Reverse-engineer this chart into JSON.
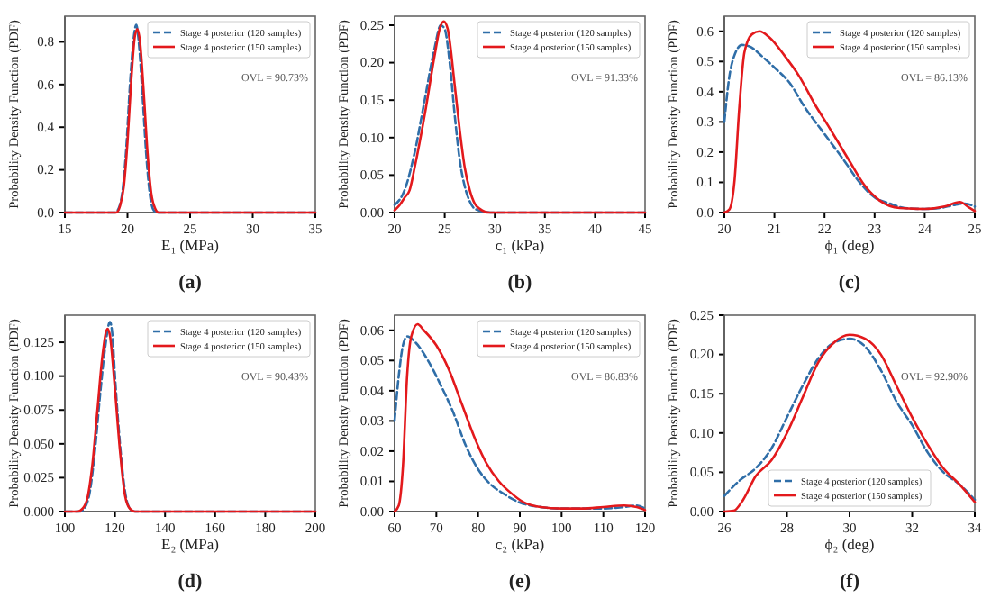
{
  "chart_data": [
    {
      "type": "line",
      "xlabel": "E₁ (MPa)",
      "ylabel": "Probability Density Function (PDF)",
      "xlim": [
        15,
        35
      ],
      "xticks": [
        15,
        20,
        25,
        30,
        35
      ],
      "ylim": [
        0,
        0.92
      ],
      "yticks": [
        {
          "value": 0,
          "label": "0.0"
        },
        {
          "value": 0.2,
          "label": "0.2"
        },
        {
          "value": 0.4,
          "label": "0.4"
        },
        {
          "value": 0.6,
          "label": "0.6"
        },
        {
          "value": 0.8,
          "label": "0.8"
        }
      ],
      "legend": "top right",
      "grid": false,
      "annotations": [
        "OVL = 90.73%",
        "(a)"
      ],
      "series": [
        {
          "name": "Stage 4 posterior (120 samples)",
          "color": "#2f6ea8",
          "line_style": "dashed",
          "x": [
            15,
            19,
            19.3,
            19.6,
            19.9,
            20.2,
            20.5,
            20.7,
            20.9,
            21.2,
            21.5,
            21.8,
            22.1,
            22.4,
            35
          ],
          "values": [
            0,
            0,
            0.02,
            0.1,
            0.3,
            0.6,
            0.82,
            0.88,
            0.8,
            0.55,
            0.27,
            0.08,
            0.01,
            0,
            0
          ]
        },
        {
          "name": "Stage 4 posterior (150 samples)",
          "color": "#e3191c",
          "line_style": "solid",
          "x": [
            15,
            19.1,
            19.4,
            19.7,
            20,
            20.3,
            20.6,
            20.8,
            21,
            21.3,
            21.6,
            21.9,
            22.2,
            22.5,
            35
          ],
          "values": [
            0,
            0,
            0.03,
            0.12,
            0.33,
            0.62,
            0.83,
            0.86,
            0.8,
            0.56,
            0.28,
            0.09,
            0.02,
            0,
            0
          ]
        }
      ]
    },
    {
      "type": "line",
      "xlabel": "c₁ (kPa)",
      "ylabel": "Probability Density Function (PDF)",
      "xlim": [
        20,
        45
      ],
      "xticks": [
        20,
        25,
        30,
        35,
        40,
        45
      ],
      "ylim": [
        0,
        0.262
      ],
      "yticks": [
        {
          "value": 0,
          "label": "0.00"
        },
        {
          "value": 0.05,
          "label": "0.05"
        },
        {
          "value": 0.1,
          "label": "0.10"
        },
        {
          "value": 0.15,
          "label": "0.15"
        },
        {
          "value": 0.2,
          "label": "0.20"
        },
        {
          "value": 0.25,
          "label": "0.25"
        }
      ],
      "legend": "top right",
      "grid": false,
      "annotations": [
        "OVL = 91.33%",
        "(b)"
      ],
      "series": [
        {
          "name": "Stage 4 posterior (120 samples)",
          "color": "#2f6ea8",
          "line_style": "dashed",
          "x": [
            20,
            21,
            22,
            23,
            24,
            24.6,
            25,
            25.5,
            26,
            26.5,
            27,
            27.5,
            28,
            29,
            30,
            45
          ],
          "values": [
            0.01,
            0.03,
            0.08,
            0.15,
            0.22,
            0.25,
            0.245,
            0.2,
            0.13,
            0.07,
            0.035,
            0.015,
            0.005,
            0.001,
            0,
            0
          ]
        },
        {
          "name": "Stage 4 posterior (150 samples)",
          "color": "#e3191c",
          "line_style": "solid",
          "x": [
            20,
            20.5,
            21,
            21.5,
            22,
            23,
            24,
            24.5,
            24.9,
            25.3,
            26,
            26.5,
            27,
            27.5,
            28,
            28.5,
            29.5,
            45
          ],
          "values": [
            0.003,
            0.01,
            0.02,
            0.03,
            0.06,
            0.13,
            0.21,
            0.245,
            0.255,
            0.245,
            0.17,
            0.11,
            0.06,
            0.03,
            0.012,
            0.005,
            0,
            0
          ]
        }
      ]
    },
    {
      "type": "line",
      "xlabel": "ϕ₁ (deg)",
      "ylabel": "Probability Density Function (PDF)",
      "xlim": [
        20,
        25
      ],
      "xticks": [
        20,
        21,
        22,
        23,
        24,
        25
      ],
      "ylim": [
        0,
        0.65
      ],
      "yticks": [
        {
          "value": 0,
          "label": "0.0"
        },
        {
          "value": 0.1,
          "label": "0.1"
        },
        {
          "value": 0.2,
          "label": "0.2"
        },
        {
          "value": 0.3,
          "label": "0.3"
        },
        {
          "value": 0.4,
          "label": "0.4"
        },
        {
          "value": 0.5,
          "label": "0.5"
        },
        {
          "value": 0.6,
          "label": "0.6"
        }
      ],
      "legend": "top right",
      "grid": false,
      "annotations": [
        "OVL = 86.13%",
        "(c)"
      ],
      "series": [
        {
          "name": "Stage 4 posterior (120 samples)",
          "color": "#2f6ea8",
          "line_style": "dashed",
          "x": [
            20,
            20.1,
            20.2,
            20.35,
            20.5,
            20.8,
            21,
            21.3,
            21.6,
            22,
            22.4,
            22.7,
            23,
            23.3,
            23.6,
            24,
            24.3,
            24.6,
            24.8,
            25
          ],
          "values": [
            0.3,
            0.45,
            0.52,
            0.555,
            0.55,
            0.51,
            0.48,
            0.43,
            0.35,
            0.26,
            0.17,
            0.1,
            0.05,
            0.03,
            0.015,
            0.012,
            0.015,
            0.025,
            0.03,
            0.02
          ]
        },
        {
          "name": "Stage 4 posterior (150 samples)",
          "color": "#e3191c",
          "line_style": "solid",
          "x": [
            20,
            20.1,
            20.2,
            20.3,
            20.4,
            20.55,
            20.7,
            20.9,
            21.2,
            21.5,
            21.8,
            22.1,
            22.5,
            22.8,
            23.1,
            23.5,
            24,
            24.4,
            24.7,
            24.9,
            25
          ],
          "values": [
            0,
            0.01,
            0.1,
            0.35,
            0.53,
            0.59,
            0.6,
            0.58,
            0.52,
            0.45,
            0.36,
            0.28,
            0.17,
            0.09,
            0.04,
            0.015,
            0.012,
            0.02,
            0.035,
            0.015,
            0.005
          ]
        }
      ]
    },
    {
      "type": "line",
      "xlabel": "E₂ (MPa)",
      "ylabel": "Probability Density Function (PDF)",
      "xlim": [
        100,
        200
      ],
      "xticks": [
        100,
        120,
        140,
        160,
        180,
        200
      ],
      "ylim": [
        0,
        0.145
      ],
      "yticks": [
        {
          "value": 0,
          "label": "0.000"
        },
        {
          "value": 0.025,
          "label": "0.025"
        },
        {
          "value": 0.05,
          "label": "0.050"
        },
        {
          "value": 0.075,
          "label": "0.075"
        },
        {
          "value": 0.1,
          "label": "0.100"
        },
        {
          "value": 0.125,
          "label": "0.125"
        }
      ],
      "legend": "top right",
      "grid": false,
      "annotations": [
        "OVL = 90.43%",
        "(d)"
      ],
      "series": [
        {
          "name": "Stage 4 posterior (120 samples)",
          "color": "#2f6ea8",
          "line_style": "dashed",
          "x": [
            100,
            106,
            108,
            110,
            112,
            114,
            116,
            118,
            119,
            120,
            122,
            124,
            126,
            128,
            200
          ],
          "values": [
            0,
            0,
            0.003,
            0.015,
            0.045,
            0.085,
            0.12,
            0.14,
            0.13,
            0.1,
            0.05,
            0.015,
            0.002,
            0,
            0
          ]
        },
        {
          "name": "Stage 4 posterior (150 samples)",
          "color": "#e3191c",
          "line_style": "solid",
          "x": [
            100,
            105,
            107,
            109,
            111,
            113,
            115,
            117,
            118,
            120,
            122,
            124,
            126,
            128,
            200
          ],
          "values": [
            0,
            0,
            0.002,
            0.01,
            0.035,
            0.075,
            0.115,
            0.135,
            0.13,
            0.09,
            0.045,
            0.012,
            0.002,
            0,
            0
          ]
        }
      ]
    },
    {
      "type": "line",
      "xlabel": "c₂ (kPa)",
      "ylabel": "Probability Density Function (PDF)",
      "xlim": [
        60,
        120
      ],
      "xticks": [
        60,
        70,
        80,
        90,
        100,
        110,
        120
      ],
      "ylim": [
        0,
        0.065
      ],
      "yticks": [
        {
          "value": 0,
          "label": "0.00"
        },
        {
          "value": 0.01,
          "label": "0.01"
        },
        {
          "value": 0.02,
          "label": "0.02"
        },
        {
          "value": 0.03,
          "label": "0.03"
        },
        {
          "value": 0.04,
          "label": "0.04"
        },
        {
          "value": 0.05,
          "label": "0.05"
        },
        {
          "value": 0.06,
          "label": "0.06"
        }
      ],
      "legend": "top right",
      "grid": false,
      "annotations": [
        "OVL = 86.83%",
        "(e)"
      ],
      "series": [
        {
          "name": "Stage 4 posterior (120 samples)",
          "color": "#2f6ea8",
          "line_style": "dashed",
          "x": [
            60,
            61,
            62,
            63,
            65,
            68,
            71,
            74,
            77,
            80,
            83,
            86,
            90,
            95,
            100,
            105,
            110,
            115,
            118,
            120
          ],
          "values": [
            0.03,
            0.045,
            0.055,
            0.058,
            0.056,
            0.05,
            0.042,
            0.033,
            0.022,
            0.014,
            0.009,
            0.006,
            0.003,
            0.0015,
            0.001,
            0.001,
            0.001,
            0.0015,
            0.002,
            0.001
          ]
        },
        {
          "name": "Stage 4 posterior (150 samples)",
          "color": "#e3191c",
          "line_style": "solid",
          "x": [
            60,
            61,
            62,
            63,
            64,
            65.5,
            67,
            70,
            73,
            76,
            79,
            82,
            85,
            88,
            91,
            95,
            100,
            105,
            110,
            115,
            118,
            120
          ],
          "values": [
            0,
            0.002,
            0.015,
            0.045,
            0.058,
            0.062,
            0.06,
            0.055,
            0.047,
            0.036,
            0.025,
            0.016,
            0.01,
            0.006,
            0.003,
            0.0015,
            0.001,
            0.001,
            0.0015,
            0.002,
            0.0015,
            0.0005
          ]
        }
      ]
    },
    {
      "type": "line",
      "xlabel": "ϕ₂ (deg)",
      "ylabel": "Probability Density Function (PDF)",
      "xlim": [
        26,
        34
      ],
      "xticks": [
        26,
        28,
        30,
        32,
        34
      ],
      "ylim": [
        0,
        0.25
      ],
      "yticks": [
        {
          "value": 0,
          "label": "0.00"
        },
        {
          "value": 0.05,
          "label": "0.05"
        },
        {
          "value": 0.1,
          "label": "0.10"
        },
        {
          "value": 0.15,
          "label": "0.15"
        },
        {
          "value": 0.2,
          "label": "0.20"
        },
        {
          "value": 0.25,
          "label": "0.25"
        }
      ],
      "legend": "bottom",
      "grid": false,
      "annotations": [
        "OVL = 92.90%",
        "(f)"
      ],
      "series": [
        {
          "name": "Stage 4 posterior (120 samples)",
          "color": "#2f6ea8",
          "line_style": "dashed",
          "x": [
            26,
            26.5,
            27,
            27.5,
            28,
            28.5,
            29,
            29.5,
            30,
            30.5,
            31,
            31.5,
            32,
            32.5,
            33,
            33.5,
            34
          ],
          "values": [
            0.02,
            0.04,
            0.055,
            0.08,
            0.12,
            0.16,
            0.195,
            0.215,
            0.22,
            0.21,
            0.18,
            0.14,
            0.11,
            0.075,
            0.05,
            0.035,
            0.015
          ]
        },
        {
          "name": "Stage 4 posterior (150 samples)",
          "color": "#e3191c",
          "line_style": "solid",
          "x": [
            26,
            26.3,
            26.6,
            27,
            27.5,
            28,
            28.5,
            29,
            29.5,
            30,
            30.5,
            31,
            31.5,
            32,
            32.5,
            33,
            33.5,
            34
          ],
          "values": [
            0,
            0.001,
            0.015,
            0.045,
            0.065,
            0.1,
            0.145,
            0.19,
            0.215,
            0.225,
            0.22,
            0.2,
            0.16,
            0.12,
            0.085,
            0.055,
            0.035,
            0.012
          ]
        }
      ]
    }
  ]
}
